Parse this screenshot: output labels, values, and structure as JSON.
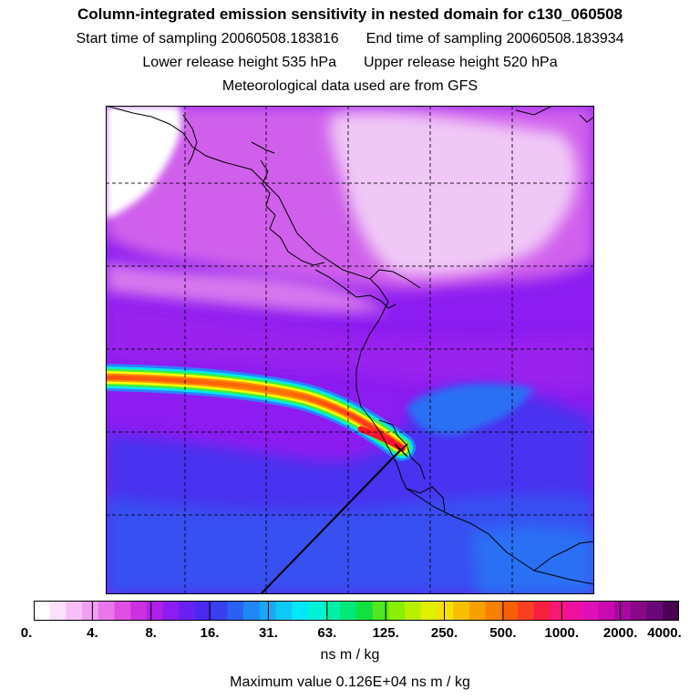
{
  "header": {
    "title": "Column-integrated emission sensitivity in nested domain for c130_060508",
    "start_label": "Start time of sampling 20060508.183816",
    "end_label": "End time of sampling 20060508.183934",
    "lower_label": "Lower release height  535 hPa",
    "upper_label": "Upper release height  520 hPa",
    "met_label": "Meteorological data used are from GFS"
  },
  "colorbar": {
    "tick_labels": [
      "0.",
      "4.",
      "8.",
      "16.",
      "31.",
      "63.",
      "125.",
      "250.",
      "500.",
      "1000.",
      "2000.",
      "4000."
    ],
    "colors": [
      "#ffffff",
      "#fde0fd",
      "#f8c0f8",
      "#f0a0f0",
      "#e878ea",
      "#de50e2",
      "#cc30e0",
      "#b020e8",
      "#8c1cf0",
      "#6a20f0",
      "#4a28f0",
      "#3840f0",
      "#2c60f2",
      "#2088f4",
      "#18a8f6",
      "#10c8f8",
      "#00e8f8",
      "#00f0d8",
      "#00f0a8",
      "#00e878",
      "#10e040",
      "#50e820",
      "#88f000",
      "#b8f000",
      "#e0f000",
      "#f8e000",
      "#f8c000",
      "#f8a000",
      "#f88000",
      "#f86000",
      "#f84020",
      "#f82040",
      "#f81878",
      "#f010a0",
      "#e010b8",
      "#c80ab0",
      "#a808a0",
      "#880888",
      "#680878",
      "#480050"
    ],
    "units": "ns m / kg"
  },
  "footer": {
    "max_value": "Maximum value  0.126E+04 ns m / kg"
  },
  "map": {
    "plume_colors": [
      "#ff2020",
      "#ff9000",
      "#ffff00",
      "#40f040",
      "#00e8f0",
      "#2090ff"
    ],
    "ocean_color": "#3a60f0",
    "field_color": "#9a20ee",
    "low_color": "#ecb0f4"
  }
}
